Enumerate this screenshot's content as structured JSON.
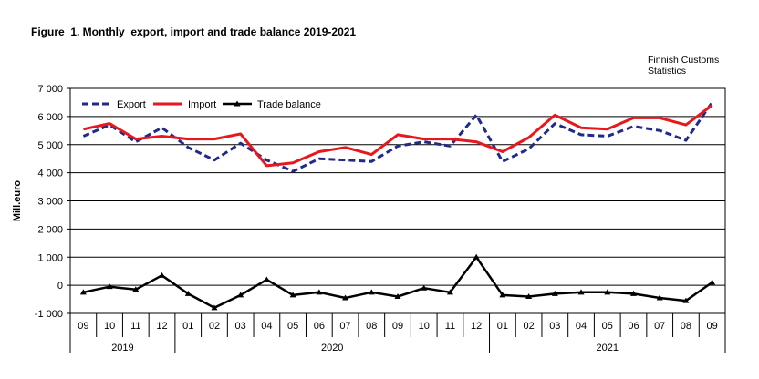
{
  "figure": {
    "title": "Figure  1. Monthly  export, import and trade balance 2019-2021",
    "source_line1": "Finnish Customs",
    "source_line2": "Statistics"
  },
  "chart_data": {
    "type": "line",
    "title": "Figure  1. Monthly  export, import and trade balance 2019-2021",
    "ylabel": "Mill.euro",
    "xlabel": "",
    "ylim": [
      -1000,
      7000
    ],
    "yticks": [
      -1000,
      0,
      1000,
      2000,
      3000,
      4000,
      5000,
      6000,
      7000
    ],
    "ytick_labels": [
      "-1 000",
      "0",
      "1 000",
      "2 000",
      "3 000",
      "4 000",
      "5 000",
      "6 000",
      "7 000"
    ],
    "grid": true,
    "legend_position": "top-left",
    "categories": [
      "09",
      "10",
      "11",
      "12",
      "01",
      "02",
      "03",
      "04",
      "05",
      "06",
      "07",
      "08",
      "09",
      "10",
      "11",
      "12",
      "01",
      "02",
      "03",
      "04",
      "05",
      "06",
      "07",
      "08",
      "09"
    ],
    "year_groups": [
      {
        "label": "2019",
        "count": 4
      },
      {
        "label": "2020",
        "count": 12
      },
      {
        "label": "2021",
        "count": 9
      }
    ],
    "series": [
      {
        "name": "Export",
        "color": "#1f2a8a",
        "style": "dashed",
        "values": [
          5300,
          5700,
          5100,
          5600,
          4900,
          4450,
          5050,
          4450,
          4050,
          4500,
          4450,
          4400,
          4950,
          5100,
          4950,
          6050,
          4400,
          4850,
          5750,
          5350,
          5300,
          5650,
          5500,
          5150,
          6500
        ]
      },
      {
        "name": "Import",
        "color": "#e8171c",
        "style": "solid",
        "values": [
          5550,
          5750,
          5200,
          5300,
          5200,
          5200,
          5380,
          4250,
          4350,
          4750,
          4900,
          4650,
          5350,
          5200,
          5200,
          5100,
          4750,
          5250,
          6050,
          5600,
          5550,
          5950,
          5950,
          5700,
          6400
        ]
      },
      {
        "name": "Trade balance",
        "color": "#000000",
        "style": "solid-markers",
        "values": [
          -250,
          -50,
          -150,
          350,
          -300,
          -800,
          -350,
          200,
          -350,
          -250,
          -450,
          -250,
          -400,
          -100,
          -250,
          1000,
          -350,
          -400,
          -300,
          -250,
          -250,
          -300,
          -450,
          -550,
          100
        ]
      }
    ]
  }
}
